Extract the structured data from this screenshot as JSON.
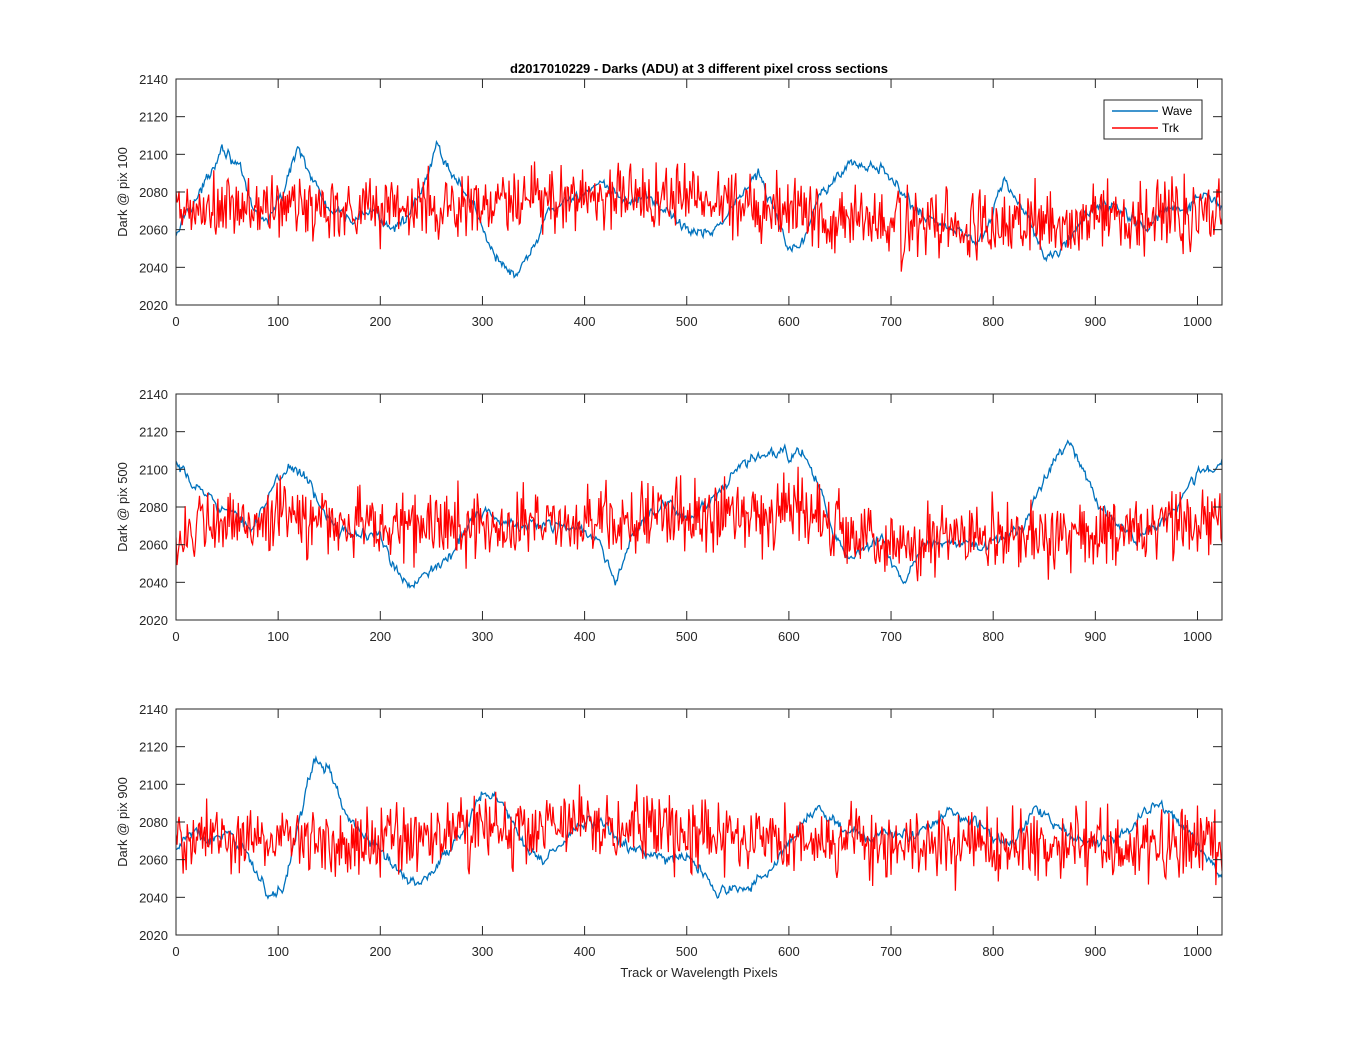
{
  "figure": {
    "title": "d2017010229 - Darks (ADU) at 3 different pixel cross sections",
    "background": "#ffffff",
    "axis_color": "#262626"
  },
  "legend": {
    "placement": "top-right",
    "entries": [
      {
        "name": "Wave",
        "color": "#0072BD"
      },
      {
        "name": "Trk",
        "color": "#FF0000"
      }
    ]
  },
  "chart_data": [
    {
      "type": "line",
      "title": "d2017010229 - Darks (ADU) at 3 different pixel cross sections",
      "xlabel": "",
      "ylabel": "Dark @ pix 100",
      "xlim": [
        0,
        1024
      ],
      "ylim": [
        2020,
        2140
      ],
      "xticks": [
        0,
        100,
        200,
        300,
        400,
        500,
        600,
        700,
        800,
        900,
        1000
      ],
      "yticks": [
        2020,
        2040,
        2060,
        2080,
        2100,
        2120,
        2140
      ],
      "grid": false,
      "legend": "top-right",
      "series": [
        {
          "name": "Wave",
          "color": "#0072BD",
          "anchors": [
            [
              0,
              2055
            ],
            [
              10,
              2070
            ],
            [
              25,
              2080
            ],
            [
              45,
              2105
            ],
            [
              60,
              2095
            ],
            [
              75,
              2070
            ],
            [
              90,
              2065
            ],
            [
              105,
              2080
            ],
            [
              120,
              2105
            ],
            [
              135,
              2085
            ],
            [
              150,
              2070
            ],
            [
              170,
              2065
            ],
            [
              190,
              2070
            ],
            [
              210,
              2062
            ],
            [
              230,
              2068
            ],
            [
              245,
              2085
            ],
            [
              255,
              2105
            ],
            [
              270,
              2090
            ],
            [
              290,
              2075
            ],
            [
              305,
              2055
            ],
            [
              320,
              2040
            ],
            [
              335,
              2035
            ],
            [
              350,
              2050
            ],
            [
              365,
              2070
            ],
            [
              380,
              2075
            ],
            [
              400,
              2080
            ],
            [
              420,
              2082
            ],
            [
              440,
              2075
            ],
            [
              460,
              2078
            ],
            [
              480,
              2070
            ],
            [
              500,
              2060
            ],
            [
              520,
              2058
            ],
            [
              540,
              2068
            ],
            [
              555,
              2080
            ],
            [
              570,
              2090
            ],
            [
              585,
              2070
            ],
            [
              600,
              2050
            ],
            [
              615,
              2055
            ],
            [
              630,
              2080
            ],
            [
              650,
              2092
            ],
            [
              670,
              2095
            ],
            [
              690,
              2092
            ],
            [
              710,
              2080
            ],
            [
              730,
              2068
            ],
            [
              760,
              2060
            ],
            [
              790,
              2055
            ],
            [
              800,
              2070
            ],
            [
              810,
              2088
            ],
            [
              820,
              2078
            ],
            [
              835,
              2065
            ],
            [
              850,
              2045
            ],
            [
              870,
              2050
            ],
            [
              890,
              2068
            ],
            [
              910,
              2075
            ],
            [
              930,
              2068
            ],
            [
              950,
              2060
            ],
            [
              970,
              2070
            ],
            [
              990,
              2072
            ],
            [
              1010,
              2078
            ],
            [
              1024,
              2070
            ]
          ],
          "noise": 4
        },
        {
          "name": "Trk",
          "color": "#FF0000",
          "anchors": [
            [
              0,
              2068
            ],
            [
              100,
              2072
            ],
            [
              200,
              2072
            ],
            [
              300,
              2072
            ],
            [
              400,
              2078
            ],
            [
              500,
              2078
            ],
            [
              600,
              2072
            ],
            [
              700,
              2062
            ],
            [
              800,
              2062
            ],
            [
              900,
              2065
            ],
            [
              1024,
              2072
            ]
          ],
          "noise": 17
        }
      ]
    },
    {
      "type": "line",
      "xlabel": "",
      "ylabel": "Dark @ pix 500",
      "xlim": [
        0,
        1024
      ],
      "ylim": [
        2020,
        2140
      ],
      "xticks": [
        0,
        100,
        200,
        300,
        400,
        500,
        600,
        700,
        800,
        900,
        1000
      ],
      "yticks": [
        2020,
        2040,
        2060,
        2080,
        2100,
        2120,
        2140
      ],
      "grid": false,
      "series": [
        {
          "name": "Wave",
          "color": "#0072BD",
          "anchors": [
            [
              0,
              2102
            ],
            [
              15,
              2092
            ],
            [
              35,
              2085
            ],
            [
              55,
              2075
            ],
            [
              75,
              2070
            ],
            [
              90,
              2085
            ],
            [
              110,
              2102
            ],
            [
              125,
              2098
            ],
            [
              140,
              2080
            ],
            [
              160,
              2070
            ],
            [
              180,
              2065
            ],
            [
              200,
              2065
            ],
            [
              215,
              2045
            ],
            [
              230,
              2038
            ],
            [
              245,
              2048
            ],
            [
              260,
              2048
            ],
            [
              275,
              2060
            ],
            [
              290,
              2075
            ],
            [
              305,
              2078
            ],
            [
              320,
              2070
            ],
            [
              340,
              2070
            ],
            [
              360,
              2072
            ],
            [
              380,
              2070
            ],
            [
              400,
              2068
            ],
            [
              415,
              2060
            ],
            [
              430,
              2040
            ],
            [
              445,
              2062
            ],
            [
              460,
              2075
            ],
            [
              480,
              2080
            ],
            [
              500,
              2075
            ],
            [
              520,
              2080
            ],
            [
              540,
              2092
            ],
            [
              555,
              2102
            ],
            [
              575,
              2108
            ],
            [
              595,
              2108
            ],
            [
              615,
              2108
            ],
            [
              630,
              2090
            ],
            [
              645,
              2065
            ],
            [
              660,
              2050
            ],
            [
              675,
              2058
            ],
            [
              690,
              2065
            ],
            [
              700,
              2050
            ],
            [
              715,
              2040
            ],
            [
              730,
              2058
            ],
            [
              750,
              2062
            ],
            [
              770,
              2060
            ],
            [
              790,
              2058
            ],
            [
              810,
              2064
            ],
            [
              830,
              2070
            ],
            [
              845,
              2090
            ],
            [
              860,
              2105
            ],
            [
              875,
              2115
            ],
            [
              890,
              2098
            ],
            [
              905,
              2080
            ],
            [
              920,
              2070
            ],
            [
              940,
              2065
            ],
            [
              960,
              2070
            ],
            [
              980,
              2080
            ],
            [
              1000,
              2098
            ],
            [
              1024,
              2102
            ]
          ],
          "noise": 4
        },
        {
          "name": "Trk",
          "color": "#FF0000",
          "anchors": [
            [
              0,
              2065
            ],
            [
              100,
              2075
            ],
            [
              200,
              2070
            ],
            [
              300,
              2070
            ],
            [
              400,
              2072
            ],
            [
              500,
              2075
            ],
            [
              600,
              2080
            ],
            [
              700,
              2060
            ],
            [
              800,
              2062
            ],
            [
              900,
              2065
            ],
            [
              1024,
              2072
            ]
          ],
          "noise": 17
        }
      ]
    },
    {
      "type": "line",
      "xlabel": "Track or Wavelength Pixels",
      "ylabel": "Dark @ pix 900",
      "xlim": [
        0,
        1024
      ],
      "ylim": [
        2020,
        2140
      ],
      "xticks": [
        0,
        100,
        200,
        300,
        400,
        500,
        600,
        700,
        800,
        900,
        1000
      ],
      "yticks": [
        2020,
        2040,
        2060,
        2080,
        2100,
        2120,
        2140
      ],
      "grid": false,
      "series": [
        {
          "name": "Wave",
          "color": "#0072BD",
          "anchors": [
            [
              0,
              2065
            ],
            [
              15,
              2075
            ],
            [
              30,
              2070
            ],
            [
              50,
              2072
            ],
            [
              70,
              2065
            ],
            [
              90,
              2040
            ],
            [
              105,
              2045
            ],
            [
              120,
              2080
            ],
            [
              135,
              2112
            ],
            [
              150,
              2108
            ],
            [
              165,
              2085
            ],
            [
              185,
              2072
            ],
            [
              205,
              2062
            ],
            [
              225,
              2050
            ],
            [
              240,
              2048
            ],
            [
              260,
              2060
            ],
            [
              280,
              2075
            ],
            [
              300,
              2095
            ],
            [
              320,
              2090
            ],
            [
              340,
              2068
            ],
            [
              360,
              2060
            ],
            [
              380,
              2070
            ],
            [
              400,
              2080
            ],
            [
              420,
              2078
            ],
            [
              440,
              2068
            ],
            [
              460,
              2062
            ],
            [
              480,
              2060
            ],
            [
              500,
              2062
            ],
            [
              515,
              2055
            ],
            [
              530,
              2042
            ],
            [
              550,
              2045
            ],
            [
              570,
              2048
            ],
            [
              590,
              2060
            ],
            [
              610,
              2078
            ],
            [
              625,
              2088
            ],
            [
              640,
              2082
            ],
            [
              660,
              2075
            ],
            [
              680,
              2070
            ],
            [
              700,
              2075
            ],
            [
              720,
              2072
            ],
            [
              740,
              2080
            ],
            [
              760,
              2085
            ],
            [
              780,
              2080
            ],
            [
              800,
              2072
            ],
            [
              820,
              2068
            ],
            [
              840,
              2088
            ],
            [
              860,
              2078
            ],
            [
              880,
              2072
            ],
            [
              900,
              2068
            ],
            [
              920,
              2072
            ],
            [
              940,
              2080
            ],
            [
              960,
              2090
            ],
            [
              980,
              2082
            ],
            [
              1000,
              2068
            ],
            [
              1024,
              2050
            ]
          ],
          "noise": 4
        },
        {
          "name": "Trk",
          "color": "#FF0000",
          "anchors": [
            [
              0,
              2070
            ],
            [
              100,
              2072
            ],
            [
              200,
              2070
            ],
            [
              300,
              2075
            ],
            [
              400,
              2078
            ],
            [
              500,
              2075
            ],
            [
              600,
              2072
            ],
            [
              700,
              2065
            ],
            [
              800,
              2068
            ],
            [
              900,
              2068
            ],
            [
              1024,
              2070
            ]
          ],
          "noise": 17
        }
      ]
    }
  ]
}
